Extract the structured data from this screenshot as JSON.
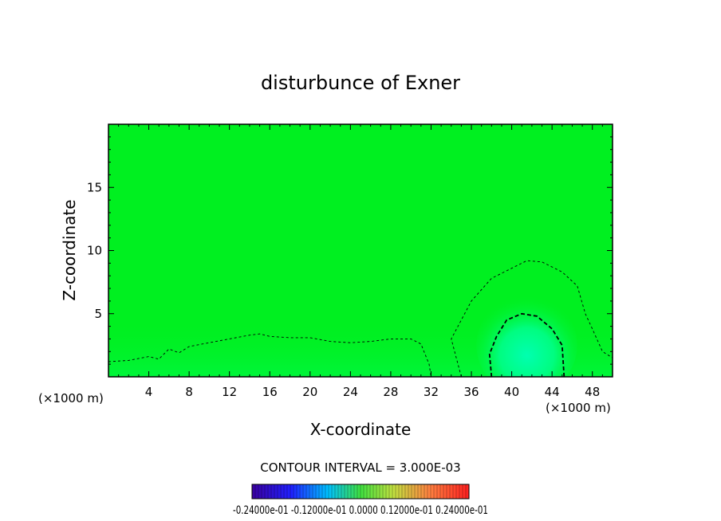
{
  "chart_data": {
    "type": "heatmap",
    "title": "disturbunce of Exner",
    "xlabel": "X-coordinate",
    "ylabel": "Z-coordinate",
    "x_unit_label_left": "(×1000 m)",
    "x_unit_label_right": "(×1000 m)",
    "xlim": [
      0,
      50
    ],
    "ylim": [
      0,
      20
    ],
    "x_ticks": [
      4,
      8,
      12,
      16,
      20,
      24,
      28,
      32,
      36,
      40,
      44,
      48
    ],
    "y_ticks": [
      5,
      10,
      15
    ],
    "grid": false,
    "background_color": "#00f020",
    "contour_interval_text": "CONTOUR INTERVAL = 3.000E-03",
    "colorbar_labels_text": "-0.24000e-01 -0.12000e-01 0.0000 0.12000e-01 0.24000e-01",
    "colorbar_range": [
      -0.024,
      0.024
    ],
    "contours": [
      {
        "style": "dashed-thin",
        "points": [
          [
            0,
            1.2
          ],
          [
            2,
            1.3
          ],
          [
            4,
            1.6
          ],
          [
            5,
            1.4
          ],
          [
            6,
            2.2
          ],
          [
            7,
            1.9
          ],
          [
            8,
            2.4
          ],
          [
            10,
            2.7
          ],
          [
            12,
            3.0
          ],
          [
            14,
            3.3
          ],
          [
            15,
            3.4
          ],
          [
            16,
            3.2
          ],
          [
            18,
            3.1
          ],
          [
            20,
            3.1
          ],
          [
            22,
            2.8
          ],
          [
            24,
            2.7
          ],
          [
            26,
            2.8
          ],
          [
            28,
            3.0
          ],
          [
            30,
            3.0
          ],
          [
            31,
            2.6
          ],
          [
            31.8,
            1.0
          ],
          [
            32,
            0
          ]
        ]
      },
      {
        "style": "dashed-thin",
        "points": [
          [
            35,
            0
          ],
          [
            34.5,
            1.5
          ],
          [
            34,
            3.0
          ],
          [
            34.8,
            4.2
          ],
          [
            36,
            6.0
          ],
          [
            38,
            7.8
          ],
          [
            40,
            8.6
          ],
          [
            41.5,
            9.2
          ],
          [
            43,
            9.1
          ],
          [
            45,
            8.3
          ],
          [
            46.5,
            7.2
          ],
          [
            47.3,
            5.0
          ],
          [
            48,
            3.8
          ],
          [
            49,
            2.0
          ],
          [
            50,
            1.5
          ]
        ]
      },
      {
        "style": "dashed-thick",
        "points": [
          [
            38,
            0
          ],
          [
            37.8,
            1.8
          ],
          [
            38.5,
            3.2
          ],
          [
            39.5,
            4.5
          ],
          [
            41,
            5.0
          ],
          [
            42.5,
            4.8
          ],
          [
            44,
            3.8
          ],
          [
            45,
            2.5
          ],
          [
            45.2,
            0
          ]
        ]
      }
    ],
    "highlight": {
      "cx": 41.5,
      "cy": 2.5,
      "rx": 5,
      "ry": 4,
      "color": "#00ffa0"
    }
  }
}
